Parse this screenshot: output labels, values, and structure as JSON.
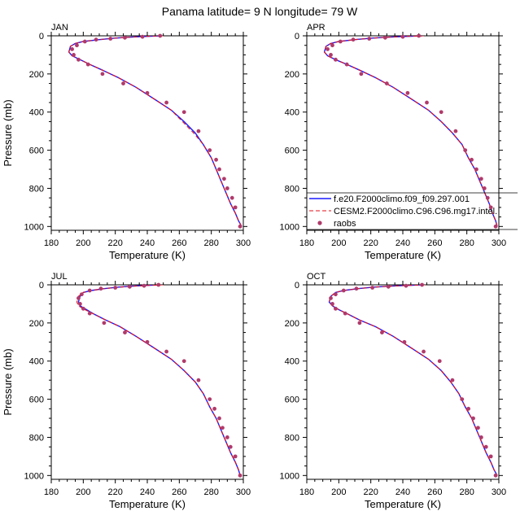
{
  "figure": {
    "title": "Panama  latitude= 9 N longitude= 79 W"
  },
  "colors": {
    "model1": "#1a1aff",
    "model2": "#e0101a",
    "obs": "#b03a6a",
    "frame": "#000000"
  },
  "chart_data": [
    {
      "type": "line",
      "panel_label": "JAN",
      "xlabel": "Temperature (K)",
      "ylabel": "Pressure (mb)",
      "xlim": [
        180,
        300
      ],
      "ylim": [
        1020,
        0
      ],
      "xticks": [
        180,
        200,
        220,
        240,
        260,
        280,
        300
      ],
      "yticks": [
        0,
        200,
        400,
        600,
        800,
        1000
      ],
      "series": [
        {
          "name": "f.e20.F2000climo.f09_f09.297.001",
          "style": "solid",
          "x": [
            249,
            240,
            230,
            220,
            210,
            200,
            195,
            192,
            191,
            193,
            198,
            204,
            212,
            222,
            233,
            245,
            255,
            263,
            270,
            275,
            280,
            283,
            286,
            289,
            292,
            295,
            297,
            299
          ],
          "y": [
            0,
            3,
            7,
            12,
            20,
            30,
            40,
            55,
            85,
            105,
            125,
            150,
            180,
            220,
            270,
            335,
            390,
            450,
            510,
            570,
            640,
            700,
            760,
            820,
            880,
            930,
            970,
            1000
          ]
        },
        {
          "name": "CESM2.F2000climo.C96.C96.mg17.intel.",
          "style": "dashed",
          "x": [
            250,
            240,
            230,
            220,
            210,
            200,
            195,
            192,
            191,
            193,
            198,
            204,
            212,
            222,
            233,
            245,
            255,
            262,
            269,
            275,
            280,
            283,
            286,
            289,
            292,
            295,
            297,
            299
          ],
          "y": [
            0,
            3,
            7,
            12,
            20,
            30,
            40,
            55,
            85,
            105,
            125,
            150,
            180,
            220,
            270,
            335,
            390,
            450,
            510,
            570,
            640,
            700,
            760,
            820,
            880,
            930,
            970,
            1000
          ]
        },
        {
          "name": "raobs",
          "style": "markers",
          "x": [
            248,
            237,
            226,
            217,
            208,
            201,
            196,
            193,
            194,
            197,
            203,
            212,
            225,
            240,
            252,
            263,
            272,
            279,
            283,
            285,
            288,
            290,
            293,
            295,
            298
          ],
          "y": [
            0,
            5,
            10,
            15,
            20,
            30,
            50,
            70,
            100,
            125,
            150,
            200,
            250,
            300,
            350,
            400,
            500,
            600,
            650,
            700,
            750,
            800,
            850,
            900,
            1000
          ]
        }
      ]
    },
    {
      "type": "line",
      "panel_label": "APR",
      "xlabel": "Temperature (K)",
      "ylabel": "",
      "xlim": [
        180,
        300
      ],
      "ylim": [
        1020,
        0
      ],
      "xticks": [
        180,
        200,
        220,
        240,
        260,
        280,
        300
      ],
      "yticks": [
        0,
        200,
        400,
        600,
        800,
        1000
      ],
      "legend_placement": "bottom-right",
      "series": [
        {
          "name": "f.e20.F2000climo.f09_f09.297.001",
          "style": "solid",
          "x": [
            252,
            243,
            232,
            221,
            210,
            200,
            195,
            192,
            191,
            193,
            198,
            205,
            213,
            223,
            234,
            246,
            256,
            264,
            271,
            277,
            281,
            285,
            288,
            291,
            294,
            296,
            298,
            299
          ],
          "y": [
            0,
            3,
            7,
            12,
            20,
            30,
            40,
            55,
            85,
            105,
            125,
            150,
            180,
            220,
            270,
            335,
            390,
            450,
            510,
            570,
            640,
            700,
            760,
            820,
            880,
            930,
            970,
            1000
          ]
        },
        {
          "name": "CESM2.F2000climo.C96.C96.mg17.intel.",
          "style": "dashed",
          "x": [
            253,
            243,
            232,
            221,
            210,
            200,
            195,
            192,
            191,
            193,
            198,
            205,
            213,
            223,
            234,
            246,
            256,
            264,
            271,
            277,
            281,
            285,
            288,
            291,
            294,
            296,
            298,
            299
          ],
          "y": [
            0,
            3,
            7,
            12,
            20,
            30,
            40,
            55,
            85,
            105,
            125,
            150,
            180,
            220,
            270,
            335,
            390,
            450,
            510,
            570,
            640,
            700,
            760,
            820,
            880,
            930,
            970,
            1000
          ]
        },
        {
          "name": "raobs",
          "style": "markers",
          "x": [
            250,
            240,
            229,
            219,
            209,
            201,
            196,
            193,
            195,
            198,
            205,
            214,
            230,
            243,
            255,
            264,
            273,
            279,
            283,
            286,
            289,
            291,
            293,
            295,
            298
          ],
          "y": [
            0,
            5,
            10,
            15,
            20,
            30,
            50,
            70,
            100,
            125,
            150,
            200,
            250,
            300,
            350,
            400,
            500,
            600,
            650,
            700,
            750,
            800,
            850,
            900,
            1000
          ]
        }
      ]
    },
    {
      "type": "line",
      "panel_label": "JUL",
      "xlabel": "Temperature (K)",
      "ylabel": "Pressure (mb)",
      "xlim": [
        180,
        300
      ],
      "ylim": [
        1020,
        0
      ],
      "xticks": [
        180,
        200,
        220,
        240,
        260,
        280,
        300
      ],
      "yticks": [
        0,
        200,
        400,
        600,
        800,
        1000
      ],
      "series": [
        {
          "name": "f.e20.F2000climo.f09_f09.297.001",
          "style": "solid",
          "x": [
            248,
            240,
            231,
            222,
            213,
            205,
            200,
            198,
            197,
            198,
            202,
            207,
            214,
            223,
            233,
            245,
            255,
            263,
            270,
            275,
            279,
            283,
            286,
            289,
            292,
            295,
            297,
            298
          ],
          "y": [
            0,
            3,
            7,
            12,
            20,
            30,
            40,
            60,
            90,
            110,
            130,
            155,
            185,
            220,
            270,
            335,
            390,
            450,
            510,
            570,
            640,
            700,
            760,
            820,
            880,
            930,
            970,
            1000
          ]
        },
        {
          "name": "CESM2.F2000climo.C96.C96.mg17.intel.",
          "style": "dashed",
          "x": [
            250,
            241,
            232,
            223,
            213,
            205,
            200,
            197,
            196,
            197,
            201,
            207,
            214,
            223,
            233,
            245,
            255,
            263,
            270,
            275,
            279,
            283,
            286,
            289,
            292,
            295,
            297,
            298
          ],
          "y": [
            0,
            3,
            7,
            12,
            20,
            30,
            40,
            60,
            90,
            110,
            130,
            155,
            185,
            220,
            270,
            335,
            390,
            450,
            510,
            570,
            640,
            700,
            760,
            820,
            880,
            930,
            970,
            1000
          ]
        },
        {
          "name": "raobs",
          "style": "markers",
          "x": [
            247,
            238,
            229,
            220,
            211,
            204,
            199,
            197,
            198,
            200,
            204,
            213,
            226,
            240,
            252,
            263,
            272,
            279,
            282,
            285,
            287,
            290,
            292,
            295,
            298
          ],
          "y": [
            0,
            5,
            10,
            15,
            20,
            30,
            50,
            70,
            100,
            125,
            150,
            200,
            250,
            300,
            350,
            400,
            500,
            600,
            650,
            700,
            750,
            800,
            850,
            900,
            1000
          ]
        }
      ]
    },
    {
      "type": "line",
      "panel_label": "OCT",
      "xlabel": "Temperature (K)",
      "ylabel": "",
      "xlim": [
        180,
        300
      ],
      "ylim": [
        1020,
        0
      ],
      "xticks": [
        180,
        200,
        220,
        240,
        260,
        280,
        300
      ],
      "yticks": [
        0,
        200,
        400,
        600,
        800,
        1000
      ],
      "series": [
        {
          "name": "f.e20.F2000climo.f09_f09.297.001",
          "style": "solid",
          "x": [
            253,
            243,
            233,
            222,
            212,
            203,
            198,
            195,
            194,
            196,
            200,
            206,
            213,
            223,
            234,
            246,
            256,
            264,
            270,
            275,
            279,
            283,
            286,
            289,
            292,
            295,
            297,
            299
          ],
          "y": [
            0,
            3,
            7,
            12,
            20,
            30,
            40,
            60,
            90,
            110,
            130,
            155,
            185,
            220,
            270,
            335,
            390,
            450,
            510,
            570,
            640,
            700,
            760,
            820,
            880,
            930,
            970,
            1000
          ]
        },
        {
          "name": "CESM2.F2000climo.C96.C96.mg17.intel.",
          "style": "dashed",
          "x": [
            254,
            244,
            233,
            222,
            212,
            203,
            198,
            195,
            194,
            196,
            200,
            206,
            213,
            223,
            234,
            246,
            256,
            264,
            270,
            275,
            279,
            283,
            286,
            289,
            292,
            295,
            297,
            299
          ],
          "y": [
            0,
            3,
            7,
            12,
            20,
            30,
            40,
            60,
            90,
            110,
            130,
            155,
            185,
            220,
            270,
            335,
            390,
            450,
            510,
            570,
            640,
            700,
            760,
            820,
            880,
            930,
            970,
            1000
          ]
        },
        {
          "name": "raobs",
          "style": "markers",
          "x": [
            252,
            242,
            231,
            221,
            211,
            203,
            198,
            195,
            196,
            198,
            204,
            213,
            227,
            241,
            253,
            263,
            271,
            277,
            281,
            284,
            287,
            289,
            292,
            295,
            298
          ],
          "y": [
            0,
            5,
            10,
            15,
            20,
            30,
            50,
            70,
            100,
            125,
            150,
            200,
            250,
            300,
            350,
            400,
            500,
            600,
            650,
            700,
            750,
            800,
            850,
            900,
            1000
          ]
        }
      ]
    }
  ]
}
